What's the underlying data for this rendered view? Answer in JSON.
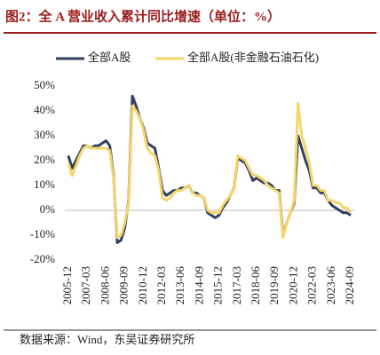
{
  "title": "图2：全 A 营业收入累计同比增速（单位：%）",
  "source": "数据来源：Wind，东吴证券研究所",
  "chart_data": {
    "type": "line",
    "categories": [
      "2005-12",
      null,
      null,
      null,
      null,
      "2007-03",
      null,
      null,
      null,
      null,
      "2008-06",
      null,
      null,
      null,
      null,
      "2009-09",
      null,
      null,
      null,
      null,
      "2010-12",
      null,
      null,
      null,
      null,
      "2012-03",
      null,
      null,
      null,
      null,
      "2013-06",
      null,
      null,
      null,
      null,
      "2014-09",
      null,
      null,
      null,
      null,
      "2015-12",
      null,
      null,
      null,
      null,
      "2017-03",
      null,
      null,
      null,
      null,
      "2018-06",
      null,
      null,
      null,
      null,
      "2019-09",
      null,
      null,
      null,
      null,
      "2020-12",
      null,
      null,
      null,
      null,
      "2022-03",
      null,
      null,
      null,
      null,
      "2023-06",
      null,
      null,
      null,
      null,
      "2024-09"
    ],
    "series": [
      {
        "name": "全部A股",
        "color": "#323f5e",
        "values": [
          22,
          17,
          20,
          23,
          26,
          26,
          25,
          26,
          26,
          27,
          28,
          26,
          14,
          -13,
          -12,
          -7,
          4,
          46,
          42,
          37,
          33,
          27,
          26,
          25,
          17,
          8,
          6,
          7,
          8,
          8,
          9,
          9,
          10,
          7,
          7,
          6,
          5,
          -1,
          -2,
          -3,
          -2,
          1,
          3,
          6,
          9,
          21,
          20,
          19,
          16,
          12,
          13,
          12,
          11,
          11,
          10,
          8,
          8,
          -10,
          -5,
          -1,
          3,
          30,
          25,
          20,
          16,
          9,
          9,
          7,
          7,
          4,
          2,
          1,
          0,
          -1,
          -1,
          -2
        ]
      },
      {
        "name": "全部A股(非金融石油石化)",
        "color": "#f5d56a",
        "values": [
          19,
          14,
          18,
          22,
          25,
          26,
          25,
          25,
          25,
          25,
          25,
          24,
          13,
          -11,
          -10,
          -5,
          3,
          42,
          40,
          37,
          32,
          25,
          23,
          22,
          16,
          5,
          4,
          5,
          7,
          8,
          8,
          9,
          10,
          7,
          6,
          6,
          5,
          0,
          -1,
          -1,
          -1,
          2,
          4,
          6,
          9,
          22,
          21,
          20,
          17,
          14,
          14,
          13,
          12,
          10,
          9,
          8,
          7,
          -11,
          -5,
          -1,
          4,
          43,
          30,
          25,
          19,
          10,
          10,
          8,
          8,
          4,
          4,
          3,
          3,
          1,
          1,
          -1
        ]
      }
    ],
    "ylim": [
      -20,
      50
    ],
    "yticks": [
      {
        "value": -20,
        "label": "-20%"
      },
      {
        "value": -10,
        "label": "-10%"
      },
      {
        "value": 0,
        "label": "0%"
      },
      {
        "value": 10,
        "label": "10%"
      },
      {
        "value": 20,
        "label": "20%"
      },
      {
        "value": 30,
        "label": "30%"
      },
      {
        "value": 40,
        "label": "40%"
      },
      {
        "value": 50,
        "label": "50%"
      }
    ],
    "legend": "top"
  }
}
